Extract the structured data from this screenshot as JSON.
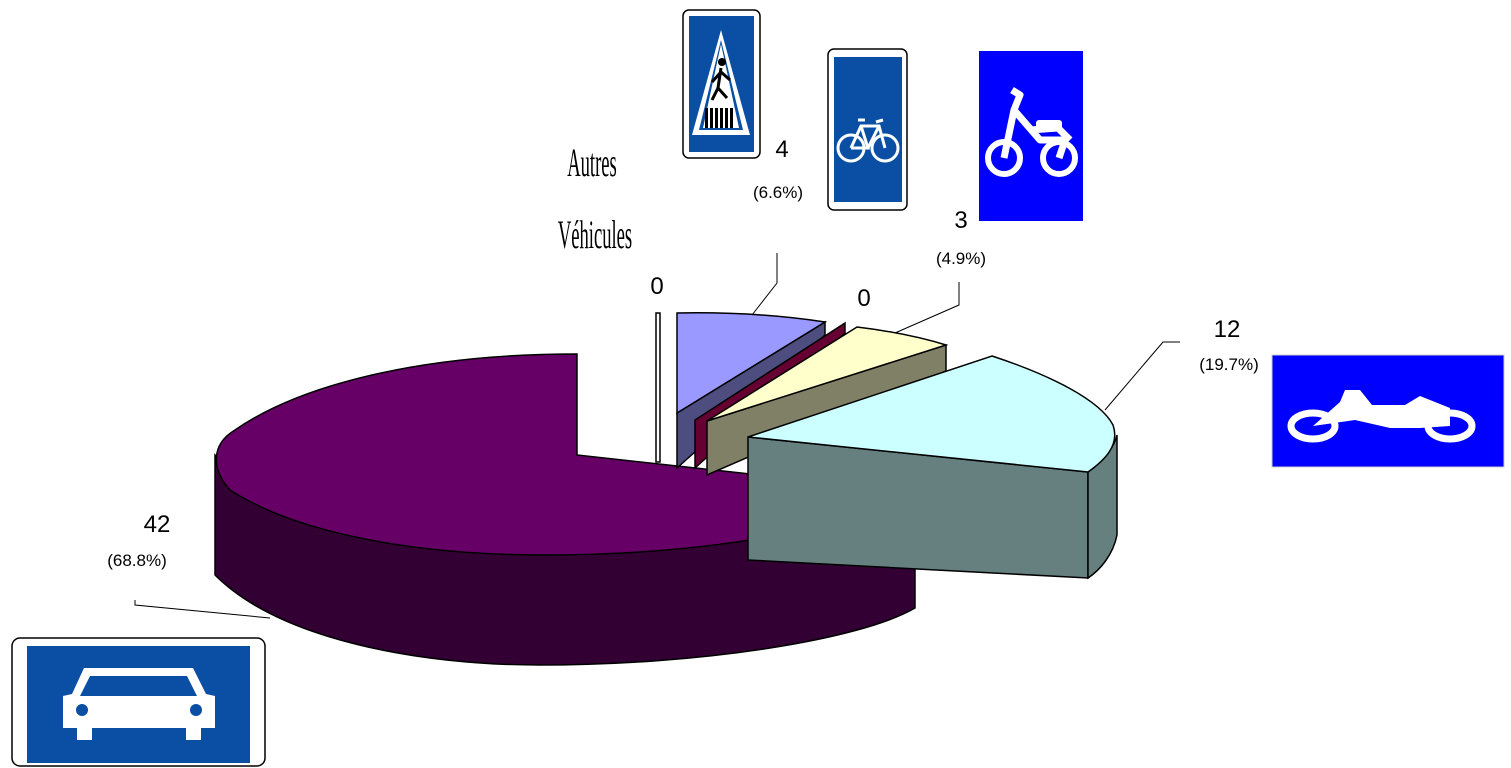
{
  "chart_data": {
    "type": "pie",
    "style": "3d-exploded",
    "slices": [
      {
        "value": 42,
        "label": "42",
        "percent_label": "(68.8%)",
        "color": "#660066",
        "icon": "car-sign-icon"
      },
      {
        "value": 0,
        "label": "0",
        "percent_label": "",
        "color": "#ffffff",
        "icon": "other-vehicles"
      },
      {
        "value": 4,
        "label": "4",
        "percent_label": "(6.6%)",
        "color": "#9999ff",
        "icon": "pedestrian-sign-icon"
      },
      {
        "value": 0,
        "label": "0",
        "percent_label": "",
        "color": "#660033",
        "icon": "bicycle-sign-icon"
      },
      {
        "value": 3,
        "label": "3",
        "percent_label": "(4.9%)",
        "color": "#ffffcc",
        "icon": "moped-sign-icon"
      },
      {
        "value": 12,
        "label": "12",
        "percent_label": "(19.7%)",
        "color": "#ccffff",
        "icon": "motorcycle-sign-icon"
      }
    ],
    "other_vehicles_label": [
      "Autres",
      "Véhicules"
    ],
    "sign_color": "#0a4fa3"
  }
}
